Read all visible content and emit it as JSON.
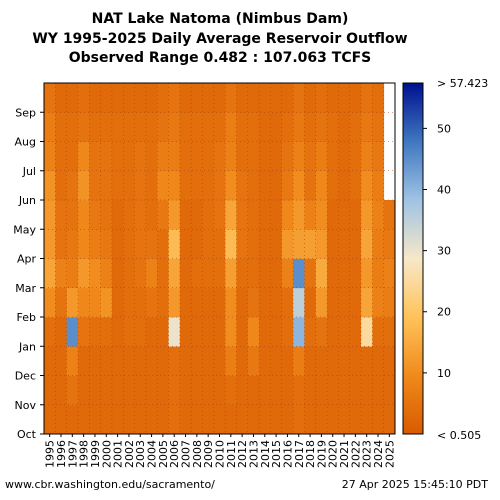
{
  "title": {
    "line1": "NAT Lake Natoma (Nimbus Dam)",
    "line2": "WY 1995-2025 Daily Average Reservoir Outflow",
    "line3": "Observed Range 0.482 : 107.063 TCFS"
  },
  "footer": {
    "source": "www.cbr.washington.edu/sacramento/",
    "timestamp": "27 Apr 2025 15:45:10 PDT"
  },
  "chart_data": {
    "type": "heatmap",
    "x_label": "",
    "y_label": "",
    "x_categories": [
      "1995",
      "1996",
      "1997",
      "1998",
      "1999",
      "2000",
      "2001",
      "2002",
      "2003",
      "2004",
      "2005",
      "2006",
      "2007",
      "2008",
      "2009",
      "2010",
      "2011",
      "2012",
      "2013",
      "2014",
      "2015",
      "2016",
      "2017",
      "2018",
      "2019",
      "2020",
      "2021",
      "2022",
      "2023",
      "2024",
      "2025"
    ],
    "y_ticks": [
      "Oct",
      "Nov",
      "Dec",
      "Jan",
      "Feb",
      "Mar",
      "Apr",
      "May",
      "Jun",
      "Jul",
      "Aug",
      "Sep"
    ],
    "colorbar": {
      "min": 0.482,
      "max": 107.063,
      "tick_values": [
        10,
        20,
        30,
        40,
        50
      ],
      "tick_labels": [
        "10",
        "20",
        "30",
        "40",
        "50"
      ],
      "top_label": "> 57.423",
      "bottom_label": "< 0.505",
      "display_max": 57.423,
      "colors": [
        "#d95a00",
        "#f08a1c",
        "#ffc35a",
        "#f7e8c8",
        "#9fc3e4",
        "#3f77c0",
        "#00108f"
      ]
    },
    "water_year_month_means_tcfs": {
      "1995": [
        3,
        3,
        3,
        4,
        10,
        14,
        12,
        12,
        11,
        8,
        7,
        5
      ],
      "1996": [
        3,
        3,
        3,
        3,
        5,
        8,
        5,
        5,
        4,
        4,
        4,
        3
      ],
      "1997": [
        3,
        5,
        8,
        45,
        12,
        7,
        6,
        5,
        5,
        4,
        4,
        3
      ],
      "1998": [
        3,
        3,
        3,
        5,
        9,
        12,
        9,
        9,
        11,
        9,
        5,
        4
      ],
      "1999": [
        3,
        3,
        3,
        4,
        9,
        10,
        7,
        6,
        5,
        5,
        4,
        3
      ],
      "2000": [
        3,
        3,
        3,
        4,
        11,
        8,
        6,
        5,
        5,
        5,
        4,
        3
      ],
      "2001": [
        3,
        3,
        3,
        3,
        3,
        3,
        3,
        3,
        4,
        4,
        4,
        3
      ],
      "2002": [
        3,
        3,
        3,
        4,
        4,
        4,
        4,
        4,
        4,
        4,
        4,
        3
      ],
      "2003": [
        3,
        3,
        3,
        4,
        4,
        5,
        5,
        5,
        5,
        5,
        4,
        3
      ],
      "2004": [
        3,
        3,
        3,
        3,
        5,
        8,
        5,
        4,
        4,
        4,
        4,
        3
      ],
      "2005": [
        3,
        3,
        3,
        3,
        4,
        4,
        4,
        6,
        9,
        7,
        5,
        4
      ],
      "2006": [
        4,
        4,
        4,
        30,
        12,
        14,
        18,
        12,
        9,
        7,
        6,
        5
      ],
      "2007": [
        3,
        3,
        3,
        3,
        3,
        3,
        3,
        3,
        4,
        4,
        4,
        3
      ],
      "2008": [
        3,
        3,
        3,
        3,
        3,
        4,
        3,
        3,
        4,
        4,
        4,
        3
      ],
      "2009": [
        3,
        3,
        3,
        3,
        3,
        4,
        4,
        4,
        4,
        4,
        4,
        3
      ],
      "2010": [
        3,
        3,
        3,
        3,
        3,
        4,
        4,
        5,
        5,
        5,
        4,
        3
      ],
      "2011": [
        3,
        4,
        7,
        10,
        10,
        13,
        18,
        14,
        10,
        8,
        7,
        5
      ],
      "2012": [
        3,
        3,
        3,
        3,
        3,
        4,
        5,
        5,
        5,
        4,
        4,
        3
      ],
      "2013": [
        3,
        3,
        6,
        9,
        5,
        4,
        4,
        4,
        4,
        4,
        4,
        3
      ],
      "2014": [
        3,
        3,
        3,
        3,
        3,
        3,
        3,
        3,
        3,
        3,
        3,
        3
      ],
      "2015": [
        3,
        3,
        3,
        3,
        3,
        3,
        3,
        3,
        3,
        3,
        3,
        3
      ],
      "2016": [
        3,
        3,
        3,
        4,
        4,
        8,
        12,
        9,
        6,
        5,
        4,
        3
      ],
      "2017": [
        4,
        4,
        7,
        40,
        35,
        45,
        13,
        12,
        10,
        8,
        6,
        5
      ],
      "2018": [
        3,
        3,
        3,
        4,
        3,
        5,
        13,
        8,
        5,
        5,
        4,
        3
      ],
      "2019": [
        3,
        3,
        3,
        5,
        12,
        15,
        12,
        10,
        9,
        7,
        5,
        4
      ],
      "2020": [
        3,
        3,
        3,
        3,
        3,
        3,
        3,
        3,
        4,
        4,
        4,
        3
      ],
      "2021": [
        3,
        3,
        3,
        3,
        3,
        3,
        3,
        3,
        3,
        3,
        3,
        3
      ],
      "2022": [
        3,
        3,
        3,
        3,
        3,
        3,
        3,
        3,
        4,
        4,
        4,
        3
      ],
      "2023": [
        3,
        3,
        3,
        25,
        14,
        12,
        14,
        12,
        10,
        8,
        6,
        5
      ],
      "2024": [
        3,
        3,
        3,
        4,
        8,
        7,
        7,
        8,
        7,
        6,
        5,
        4
      ],
      "2025": [
        3,
        3,
        3,
        4,
        7,
        8,
        6,
        5,
        null,
        null,
        null,
        null
      ]
    }
  }
}
